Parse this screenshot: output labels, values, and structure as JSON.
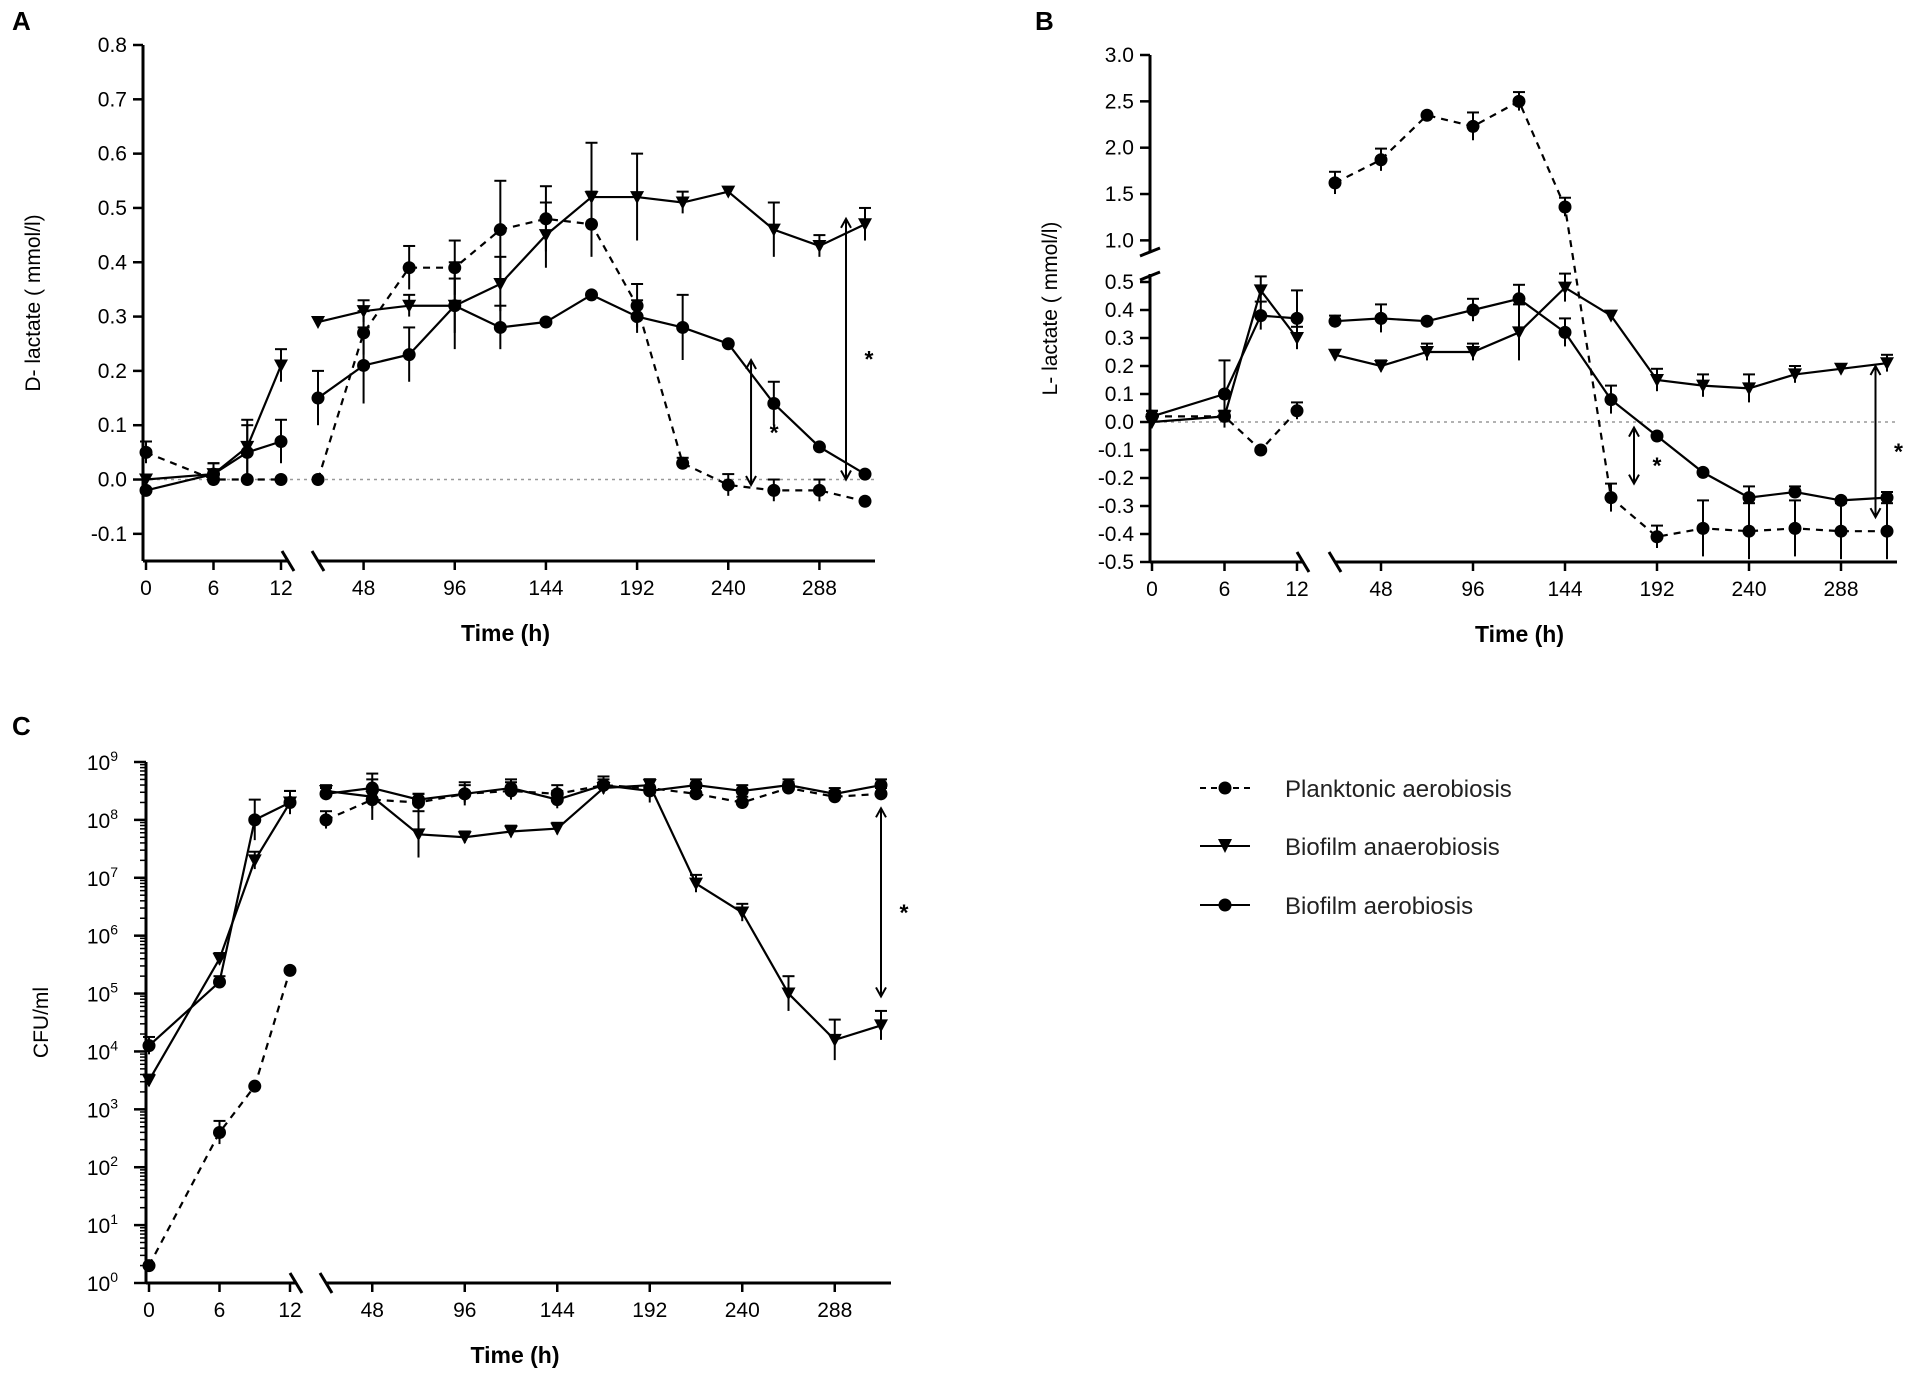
{
  "legend": {
    "items": [
      {
        "label": "Planktonic aerobiosis",
        "marker": "circle",
        "dash": true
      },
      {
        "label": "Biofilm anaerobiosis",
        "marker": "triangle-down",
        "dash": false
      },
      {
        "label": "Biofilm aerobiosis",
        "marker": "circle",
        "dash": false
      }
    ]
  },
  "chart_data": [
    {
      "panel": "A",
      "type": "line",
      "xlabel": "Time (h)",
      "ylabel": "D- lactate ( mmol/l)",
      "x_ticks_early": [
        "0",
        "6",
        "12"
      ],
      "x_ticks_late": [
        "48",
        "96",
        "144",
        "192",
        "240",
        "288"
      ],
      "y_ticks": [
        "-0.1",
        "0.0",
        "0.1",
        "0.2",
        "0.3",
        "0.4",
        "0.5",
        "0.6",
        "0.7",
        "0.8"
      ],
      "ylim": [
        -0.15,
        0.8
      ],
      "significance": "*",
      "series": [
        {
          "name": "Planktonic aerobiosis",
          "early": {
            "x": [
              0,
              6,
              9,
              12
            ],
            "y": [
              0.05,
              0.0,
              0.0,
              0.0
            ],
            "err": [
              0.02,
              0.0,
              0.0,
              0.0
            ]
          },
          "late": {
            "x": [
              24,
              48,
              72,
              96,
              120,
              144,
              168,
              192,
              216,
              240,
              264,
              288,
              312
            ],
            "y": [
              0.0,
              0.27,
              0.39,
              0.39,
              0.46,
              0.48,
              0.47,
              0.32,
              0.03,
              -0.01,
              -0.02,
              -0.02,
              -0.04
            ],
            "err": [
              0.0,
              0.04,
              0.04,
              0.05,
              0.09,
              0.06,
              0.06,
              0.04,
              0.01,
              0.02,
              0.02,
              0.02,
              0.0
            ]
          }
        },
        {
          "name": "Biofilm anaerobiosis",
          "early": {
            "x": [
              0,
              6,
              9,
              12
            ],
            "y": [
              0.0,
              0.01,
              0.06,
              0.21
            ],
            "err": [
              0.0,
              0.02,
              0.05,
              0.03
            ]
          },
          "late": {
            "x": [
              24,
              48,
              72,
              96,
              120,
              144,
              168,
              192,
              216,
              240,
              264,
              288,
              312
            ],
            "y": [
              0.29,
              0.31,
              0.32,
              0.32,
              0.36,
              0.45,
              0.52,
              0.52,
              0.51,
              0.53,
              0.46,
              0.43,
              0.47
            ],
            "err": [
              0.0,
              0.02,
              0.02,
              0.05,
              0.05,
              0.06,
              0.1,
              0.08,
              0.02,
              0.0,
              0.05,
              0.02,
              0.03
            ]
          }
        },
        {
          "name": "Biofilm aerobiosis",
          "early": {
            "x": [
              0,
              6,
              9,
              12
            ],
            "y": [
              -0.02,
              0.01,
              0.05,
              0.07
            ],
            "err": [
              0.0,
              0.02,
              0.05,
              0.04
            ]
          },
          "late": {
            "x": [
              24,
              48,
              72,
              96,
              120,
              144,
              168,
              192,
              216,
              240,
              264,
              288,
              312
            ],
            "y": [
              0.15,
              0.21,
              0.23,
              0.32,
              0.28,
              0.29,
              0.34,
              0.3,
              0.28,
              0.25,
              0.14,
              0.06,
              0.01
            ],
            "err": [
              0.05,
              0.07,
              0.05,
              0.08,
              0.04,
              0.0,
              0.0,
              0.03,
              0.06,
              0.0,
              0.04,
              0.0,
              0.0
            ]
          }
        }
      ]
    },
    {
      "panel": "B",
      "type": "line",
      "xlabel": "Time (h)",
      "ylabel": "L- lactate ( mmol/l)",
      "x_ticks_early": [
        "0",
        "6",
        "12"
      ],
      "x_ticks_late": [
        "48",
        "96",
        "144",
        "192",
        "240",
        "288"
      ],
      "y_ticks_upper": [
        "1.0",
        "1.5",
        "2.0",
        "2.5",
        "3.0"
      ],
      "y_ticks_lower": [
        "-0.5",
        "-0.4",
        "-0.3",
        "-0.2",
        "-0.1",
        "0.0",
        "0.1",
        "0.2",
        "0.3",
        "0.4",
        "0.5"
      ],
      "ylim_upper": [
        0.95,
        3.0
      ],
      "ylim_lower": [
        -0.5,
        0.5
      ],
      "significance": "*",
      "series": [
        {
          "name": "Planktonic aerobiosis",
          "early": {
            "x": [
              0,
              6,
              9,
              12
            ],
            "y": [
              0.02,
              0.02,
              -0.1,
              0.04
            ],
            "err": [
              0.02,
              0.02,
              0.0,
              0.03
            ]
          },
          "late": {
            "x": [
              24,
              48,
              72,
              96,
              120,
              144,
              168,
              192,
              216,
              240,
              264,
              288,
              312
            ],
            "y": [
              1.62,
              1.87,
              2.35,
              2.23,
              2.5,
              1.36,
              -0.27,
              -0.41,
              -0.38,
              -0.39,
              -0.38,
              -0.39,
              -0.39
            ],
            "err": [
              0.12,
              0.12,
              0.0,
              0.15,
              0.1,
              0.1,
              0.05,
              0.04,
              0.1,
              0.1,
              0.1,
              0.1,
              0.1
            ]
          }
        },
        {
          "name": "Biofilm anaerobiosis",
          "early": {
            "x": [
              0,
              6,
              9,
              12
            ],
            "y": [
              0.0,
              0.02,
              0.47,
              0.3
            ],
            "err": [
              0.0,
              0.02,
              0.05,
              0.04
            ]
          },
          "late": {
            "x": [
              24,
              48,
              72,
              96,
              120,
              144,
              168,
              192,
              216,
              240,
              264,
              288,
              312
            ],
            "y": [
              0.24,
              0.2,
              0.25,
              0.25,
              0.32,
              0.48,
              0.38,
              0.15,
              0.13,
              0.12,
              0.17,
              0.19,
              0.21
            ],
            "err": [
              0.0,
              0.02,
              0.03,
              0.03,
              0.1,
              0.05,
              0.0,
              0.04,
              0.04,
              0.05,
              0.03,
              0.0,
              0.03
            ]
          }
        },
        {
          "name": "Biofilm aerobiosis",
          "early": {
            "x": [
              0,
              6,
              9,
              12
            ],
            "y": [
              0.02,
              0.1,
              0.38,
              0.37
            ],
            "err": [
              0.02,
              0.12,
              0.05,
              0.1
            ]
          },
          "late": {
            "x": [
              24,
              48,
              72,
              96,
              120,
              144,
              168,
              192,
              216,
              240,
              264,
              288,
              312
            ],
            "y": [
              0.36,
              0.37,
              0.36,
              0.4,
              0.44,
              0.32,
              0.08,
              -0.05,
              -0.18,
              -0.27,
              -0.25,
              -0.28,
              -0.27
            ],
            "err": [
              0.02,
              0.05,
              0.0,
              0.04,
              0.05,
              0.05,
              0.05,
              0.0,
              0.0,
              0.04,
              0.02,
              0.0,
              0.02
            ]
          }
        }
      ]
    },
    {
      "panel": "C",
      "type": "line",
      "scale": "log",
      "xlabel": "Time (h)",
      "ylabel": "CFU/ml",
      "x_ticks_early": [
        "0",
        "6",
        "12"
      ],
      "x_ticks_late": [
        "48",
        "96",
        "144",
        "192",
        "240",
        "288"
      ],
      "y_ticks_exponents": [
        0,
        1,
        2,
        3,
        4,
        5,
        6,
        7,
        8,
        9
      ],
      "y_tick_base": "10",
      "ylim_log10": [
        0,
        9
      ],
      "significance": "*",
      "series": [
        {
          "name": "Planktonic aerobiosis",
          "early": {
            "x": [
              0,
              6,
              9,
              12
            ],
            "y_log10": [
              0.3,
              2.6,
              3.4,
              5.4
            ],
            "err": [
              0.0,
              0.2,
              0.0,
              0.0
            ]
          },
          "late": {
            "x": [
              24,
              48,
              72,
              96,
              120,
              144,
              168,
              192,
              216,
              240,
              264,
              288,
              312
            ],
            "y_log10": [
              8.0,
              8.35,
              8.3,
              8.45,
              8.5,
              8.45,
              8.6,
              8.55,
              8.45,
              8.3,
              8.55,
              8.4,
              8.45
            ],
            "err": [
              0.15,
              0.15,
              0.15,
              0.15,
              0.15,
              0.15,
              0.15,
              0.15,
              0.1,
              0.1,
              0.1,
              0.1,
              0.1
            ]
          }
        },
        {
          "name": "Biofilm anaerobiosis",
          "early": {
            "x": [
              0,
              6,
              9,
              12
            ],
            "y_log10": [
              3.5,
              5.6,
              7.3,
              8.3
            ],
            "err": [
              0.1,
              0.1,
              0.15,
              0.2
            ]
          },
          "late": {
            "x": [
              24,
              48,
              72,
              96,
              120,
              144,
              168,
              192,
              216,
              240,
              264,
              288,
              312
            ],
            "y_log10": [
              8.5,
              8.4,
              7.75,
              7.7,
              7.8,
              7.85,
              8.55,
              8.6,
              6.9,
              6.4,
              5.0,
              4.2,
              4.45
            ],
            "err": [
              0.1,
              0.4,
              0.4,
              0.1,
              0.1,
              0.1,
              0.1,
              0.1,
              0.15,
              0.15,
              0.3,
              0.35,
              0.25
            ]
          }
        },
        {
          "name": "Biofilm aerobiosis",
          "early": {
            "x": [
              0,
              6,
              9,
              12
            ],
            "y_log10": [
              4.1,
              5.2,
              8.0,
              8.3
            ],
            "err": [
              0.15,
              0.1,
              0.35,
              0.2
            ]
          },
          "late": {
            "x": [
              24,
              48,
              72,
              96,
              120,
              144,
              168,
              192,
              216,
              240,
              264,
              288,
              312
            ],
            "y_log10": [
              8.45,
              8.55,
              8.35,
              8.45,
              8.55,
              8.35,
              8.6,
              8.5,
              8.6,
              8.5,
              8.6,
              8.45,
              8.6
            ],
            "err": [
              0.1,
              0.15,
              0.1,
              0.2,
              0.15,
              0.15,
              0.1,
              0.2,
              0.1,
              0.1,
              0.1,
              0.1,
              0.1
            ]
          }
        }
      ]
    }
  ],
  "panel_labels": [
    "A",
    "B",
    "C"
  ]
}
